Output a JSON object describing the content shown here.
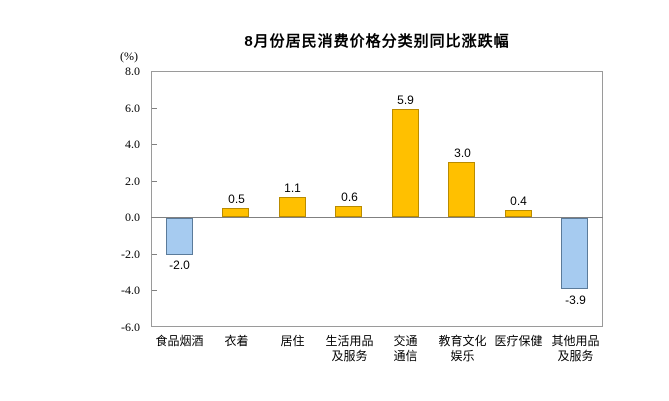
{
  "chart_data": {
    "type": "bar",
    "title": "8月份居民消费价格分类别同比涨跌幅",
    "unit_label": "(%)",
    "categories": [
      "食品烟酒",
      "衣着",
      "居住",
      "生活用品\n及服务",
      "交通\n通信",
      "教育文化\n娱乐",
      "医疗保健",
      "其他用品\n及服务"
    ],
    "values": [
      -2.0,
      0.5,
      1.1,
      0.6,
      5.9,
      3.0,
      0.4,
      -3.9
    ],
    "value_labels": [
      "-2.0",
      "0.5",
      "1.1",
      "0.6",
      "5.9",
      "3.0",
      "0.4",
      "-3.9"
    ],
    "ylabel": "(%)",
    "xlabel": "",
    "ylim": [
      -6.0,
      8.0
    ],
    "ytick_step": 2.0,
    "ytick_labels": [
      "8.0",
      "6.0",
      "4.0",
      "2.0",
      "0.0",
      "-2.0",
      "-4.0",
      "-6.0"
    ],
    "grid": false,
    "legend_position": "none",
    "colors": {
      "positive_fill": "#FFC000",
      "positive_border": "#B98B00",
      "negative_fill": "#A6CBF0",
      "negative_border": "#5B7B9A",
      "axis_line": "#808080",
      "frame": "#9A9A9A",
      "text": "#000000"
    }
  }
}
